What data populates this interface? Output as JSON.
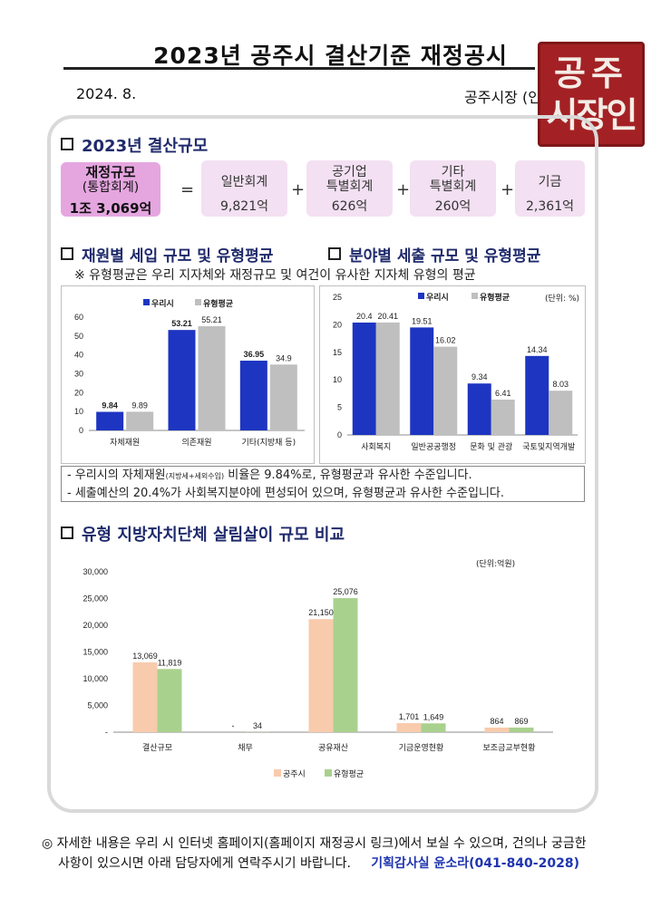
{
  "header": {
    "title": "2023년 공주시 결산기준 재정공시",
    "date": "2024. 8.",
    "mayor": "공주시장 (인)",
    "seal_text": "공주시장인"
  },
  "scale": {
    "heading": "2023년 결산규모",
    "total": {
      "label1": "재정규모",
      "label2": "(통합회계)",
      "value": "1조 3,069억"
    },
    "equals": "=",
    "plus": "+",
    "items": [
      {
        "label1": "일반회계",
        "label2": "",
        "value": "9,821억"
      },
      {
        "label1": "공기업",
        "label2": "특별회계",
        "value": "626억"
      },
      {
        "label1": "기타",
        "label2": "특별회계",
        "value": "260억"
      },
      {
        "label1": "기금",
        "label2": "",
        "value": "2,361억"
      }
    ]
  },
  "section2": {
    "heading_left": "재원별 세입 규모 및 유형평균",
    "heading_right": "분야별 세출 규모 및 유형평균",
    "subtitle": "※ 유형평균은 우리 지자체와 재정규모 및 여건이 유사한 지자체 유형의 평균"
  },
  "colors": {
    "ours": "#1d35c1",
    "avg": "#bfbfbf",
    "gongju": "#f8cbad",
    "type_avg": "#a9d18e",
    "accent": "#1f2a6b"
  },
  "chart_data": [
    {
      "type": "bar",
      "categories": [
        "자체재원",
        "의존재원",
        "기타(지방채 등)"
      ],
      "series": [
        {
          "name": "우리시",
          "values": [
            9.84,
            53.21,
            36.95
          ]
        },
        {
          "name": "유형평균",
          "values": [
            9.89,
            55.21,
            34.9
          ]
        }
      ],
      "data_labels": {
        "ours": [
          "9.84",
          "53.21",
          "36.95"
        ],
        "avg": [
          "9.89",
          "55.21",
          "34.9"
        ]
      },
      "ylim": [
        0,
        60
      ],
      "yticks": [
        "0",
        "10",
        "20",
        "30",
        "40",
        "50",
        "60"
      ],
      "legend": "top",
      "unit": "",
      "grid": false
    },
    {
      "type": "bar",
      "categories": [
        "사회복지",
        "일반공공행정",
        "문화 및 관광",
        "국토및지역개발"
      ],
      "series": [
        {
          "name": "우리시",
          "values": [
            20.4,
            19.51,
            9.34,
            14.34
          ]
        },
        {
          "name": "유형평균",
          "values": [
            20.41,
            16.02,
            6.41,
            8.03
          ]
        }
      ],
      "data_labels": {
        "ours": [
          "20.4",
          "19.51",
          "9.34",
          "14.34"
        ],
        "avg": [
          "20.41",
          "16.02",
          "6.41",
          "8.03"
        ]
      },
      "ylim": [
        0,
        25
      ],
      "yticks": [
        "0",
        "5",
        "10",
        "15",
        "20",
        "25"
      ],
      "legend": "top",
      "unit": "(단위: %)",
      "grid": false
    },
    {
      "type": "bar",
      "categories": [
        "결산규모",
        "채무",
        "공유재산",
        "기금운영현황",
        "보조금교부현황"
      ],
      "series": [
        {
          "name": "공주시",
          "values": [
            13069,
            0,
            21150,
            1701,
            864
          ]
        },
        {
          "name": "유형평균",
          "values": [
            11819,
            34,
            25076,
            1649,
            869
          ]
        }
      ],
      "data_labels": {
        "ours": [
          "13,069",
          "-",
          "21,150",
          "1,701",
          "864"
        ],
        "avg": [
          "11,819",
          "34",
          "25,076",
          "1,649",
          "869"
        ]
      },
      "ylim": [
        0,
        30000
      ],
      "yticks": [
        "-",
        "5,000",
        "10,000",
        "15,000",
        "20,000",
        "25,000",
        "30,000"
      ],
      "legend": "bottom",
      "unit": "(단위:억원)",
      "grid": false
    }
  ],
  "notes": [
    {
      "a": "- 우리시의 자체재원",
      "small": "(지방세+세외수입)",
      "b": " 비율은 9.84%로, 유형평균과 유사한 수준입니다."
    },
    {
      "a": "- 세출예산의 20.4%가 사회복지분야에 편성되어 있으며, 유형평균과 유사한 수준입니다.",
      "small": "",
      "b": ""
    }
  ],
  "section3": {
    "heading": "유형 지방자치단체 살림살이 규모 비교"
  },
  "footer": {
    "symbol": "◎",
    "line1": "자세한 내용은 우리 시 인터넷 홈페이지(홈페이지 재정공시 링크)에서 보실 수 있으며, 건의나 궁금한",
    "line2": "사항이 있으시면 아래 담당자에게 연락주시기 바랍니다.",
    "contact": "기획감사실 윤소라(041-840-2028)"
  }
}
